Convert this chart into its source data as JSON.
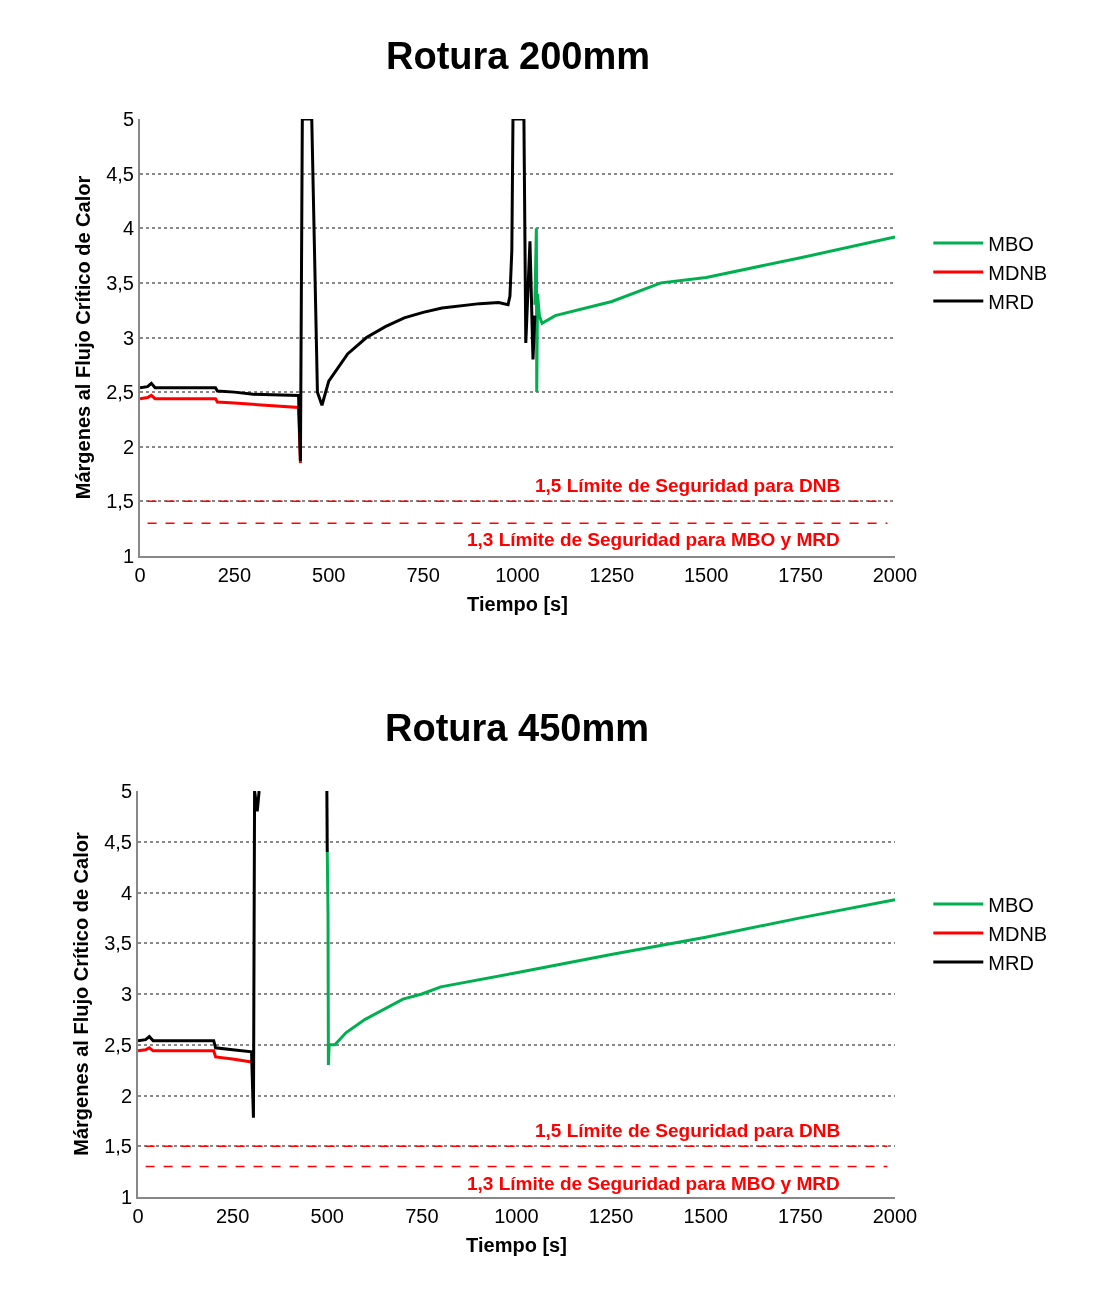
{
  "chart_data": [
    {
      "type": "line",
      "title": "Rotura 200mm",
      "xlabel": "Tiempo [s]",
      "ylabel": "Márgenes al Flujo Crítico de Calor",
      "xlim": [
        0,
        2000
      ],
      "xticks": [
        0,
        250,
        500,
        750,
        1000,
        1250,
        1500,
        1750,
        2000
      ],
      "ylim": [
        1,
        5
      ],
      "yticks": [
        1,
        {
          "value": 1.5,
          "label": "1,5"
        },
        2,
        {
          "value": 2.5,
          "label": "2,5"
        },
        3,
        {
          "value": 3.5,
          "label": "3,5"
        },
        4,
        {
          "value": 4.5,
          "label": "4,5"
        },
        5
      ],
      "grid": "y",
      "legend": "right",
      "line_style": "solid",
      "marker": "none",
      "series": [
        {
          "name": "MBO",
          "color": "#00b050",
          "x": [
            1046,
            1050,
            1051,
            1053,
            1058,
            1065,
            1100,
            1250,
            1380,
            1500,
            1750,
            2000
          ],
          "values": [
            3.3,
            4.0,
            2.5,
            3.4,
            3.2,
            3.13,
            3.2,
            3.33,
            3.5,
            3.55,
            3.73,
            3.92
          ]
        },
        {
          "name": "MDNB",
          "color": "#ff0000",
          "x": [
            0,
            20,
            30,
            40,
            200,
            205,
            250,
            420,
            425
          ],
          "values": [
            2.44,
            2.45,
            2.47,
            2.44,
            2.44,
            2.41,
            2.4,
            2.36,
            1.85
          ]
        },
        {
          "name": "MRD",
          "color": "#000000",
          "x": [
            0,
            20,
            30,
            40,
            200,
            205,
            250,
            300,
            420,
            425,
            430,
            455,
            470,
            482,
            500,
            550,
            600,
            650,
            700,
            750,
            800,
            900,
            950,
            975,
            980,
            985,
            988,
            1017,
            1022,
            1033,
            1041,
            1046
          ],
          "values": [
            2.54,
            2.55,
            2.58,
            2.54,
            2.54,
            2.51,
            2.5,
            2.48,
            2.47,
            1.87,
            5,
            5,
            2.5,
            2.38,
            2.6,
            2.85,
            3.0,
            3.1,
            3.18,
            3.23,
            3.27,
            3.31,
            3.32,
            3.3,
            3.38,
            3.8,
            5,
            5,
            2.95,
            3.88,
            2.8,
            3.2
          ]
        }
      ],
      "ref_lines": [
        {
          "axis": "y",
          "value": 1.5,
          "label": "1,5 Límite de Seguridad para DNB",
          "color": "#ff0000",
          "line_style": "dashed"
        },
        {
          "axis": "y",
          "value": 1.3,
          "label": "1,3 Límite de Seguridad para MBO y MRD",
          "color": "#ff0000",
          "line_style": "dashed"
        }
      ]
    },
    {
      "type": "line",
      "title": "Rotura 450mm",
      "xlabel": "Tiempo [s]",
      "ylabel": "Márgenes al Flujo Crítico de Calor",
      "xlim": [
        0,
        2000
      ],
      "xticks": [
        0,
        250,
        500,
        750,
        1000,
        1250,
        1500,
        1750,
        2000
      ],
      "ylim": [
        1,
        5
      ],
      "yticks": [
        1,
        {
          "value": 1.5,
          "label": "1,5"
        },
        2,
        {
          "value": 2.5,
          "label": "2,5"
        },
        3,
        {
          "value": 3.5,
          "label": "3,5"
        },
        4,
        {
          "value": 4.5,
          "label": "4,5"
        },
        5
      ],
      "grid": "y",
      "legend": "right",
      "line_style": "solid",
      "marker": "none",
      "series": [
        {
          "name": "MBO",
          "color": "#00b050",
          "x": [
            500,
            502,
            503,
            505,
            520,
            550,
            600,
            700,
            750,
            800,
            1000,
            1250,
            1500,
            1750,
            2000
          ],
          "values": [
            4.4,
            3.8,
            2.3,
            2.5,
            2.5,
            2.62,
            2.75,
            2.95,
            3.0,
            3.07,
            3.21,
            3.39,
            3.56,
            3.75,
            3.93
          ]
        },
        {
          "name": "MDNB",
          "color": "#ff0000",
          "x": [
            0,
            20,
            30,
            40,
            200,
            205,
            250,
            300
          ],
          "values": [
            2.44,
            2.45,
            2.47,
            2.44,
            2.44,
            2.38,
            2.36,
            2.33
          ]
        },
        {
          "name": "MRD",
          "color": "#000000",
          "x": [
            0,
            20,
            30,
            40,
            200,
            205,
            250,
            300,
            305,
            308,
            315,
            320,
            400,
            499,
            500
          ],
          "values": [
            2.54,
            2.55,
            2.58,
            2.54,
            2.54,
            2.47,
            2.45,
            2.43,
            1.78,
            5,
            4.8,
            5,
            null,
            5,
            4.4
          ]
        }
      ],
      "ref_lines": [
        {
          "axis": "y",
          "value": 1.5,
          "label": "1,5 Límite de Seguridad para DNB",
          "color": "#ff0000",
          "line_style": "dashed"
        },
        {
          "axis": "y",
          "value": 1.3,
          "label": "1,3 Límite de Seguridad para MBO y MRD",
          "color": "#ff0000",
          "line_style": "dashed"
        }
      ]
    }
  ]
}
